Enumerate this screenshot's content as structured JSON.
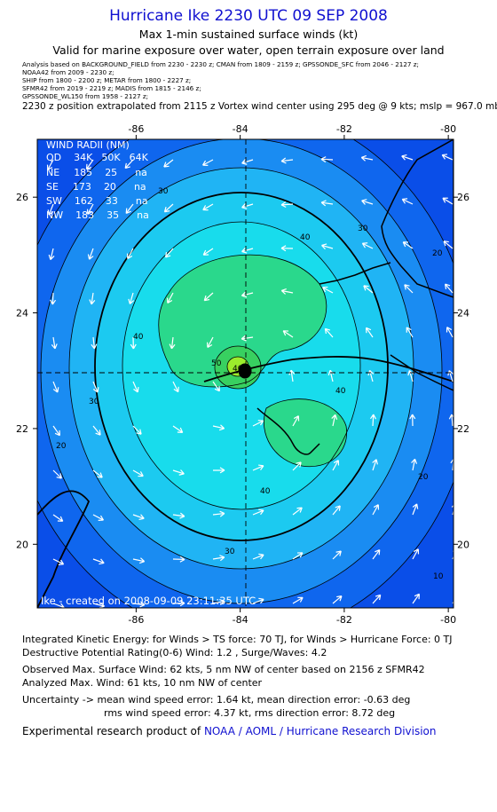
{
  "header": {
    "title": "Hurricane Ike 2230 UTC 09 SEP 2008",
    "subtitle": "Max 1-min sustained surface winds (kt)",
    "valid_text": "Valid for marine exposure over water, open terrain exposure over land",
    "sources": [
      "Analysis based on  BACKGROUND_FIELD from 2230 - 2230 z;  CMAN from 1809 - 2159 z;  GPSSONDE_SFC from 2046 - 2127 z;",
      "NOAA42 from 2009 - 2230 z;",
      "SHIP from 1800 - 2200 z;   METAR from 1800 - 2227 z;",
      "SFMR42 from 2019 - 2219 z;   MADIS from 1815 - 2146 z;",
      "GPSSONDE_WL150 from 1958 - 2127 z;"
    ],
    "position_text": "2230 z position extrapolated from 2115 z Vortex wind center using 295 deg @ 9 kts; mslp = 967.0 mb"
  },
  "map": {
    "lon_labels": [
      "-86",
      "-84",
      "-82",
      "-80"
    ],
    "lat_labels": [
      "26",
      "24",
      "22",
      "20"
    ],
    "lon_values": [
      -86,
      -84,
      -82,
      -80
    ],
    "lat_values": [
      26,
      24,
      22,
      20
    ],
    "extent": {
      "lon_min": -87.9,
      "lon_max": -79.9,
      "lat_min": 18.9,
      "lat_max": 27.0
    },
    "center": {
      "lon": -83.9,
      "lat": 23.0
    },
    "contour_labels": [
      "30",
      "40",
      "50",
      "30",
      "20",
      "30",
      "40",
      "40",
      "40",
      "40",
      "20",
      "20",
      "30",
      "10"
    ],
    "wind_radii": {
      "title": "WIND RADII (NM)",
      "header": [
        "QD",
        "34K",
        "50K",
        "64K"
      ],
      "rows": [
        [
          "NE",
          "185",
          "25",
          "na"
        ],
        [
          "SE",
          "173",
          "20",
          "na"
        ],
        [
          "SW",
          "162",
          "33",
          "na"
        ],
        [
          "NW",
          "183",
          "35",
          "na"
        ]
      ]
    },
    "footer_text": "Ike - created on 2008-09-09 23:11:35 UTC",
    "colors": {
      "deep": "#0a4ee8",
      "c10": "#0f66ee",
      "c20": "#1a8cf2",
      "c30": "#20b4f4",
      "c40": "#18dcec",
      "c45": "#24f0c8",
      "c50": "#2ad88c",
      "c55": "#38d060",
      "c60": "#9cec2c",
      "land": "#000000"
    }
  },
  "stats": {
    "ike": "Integrated Kinetic Energy:  for Winds > TS force: 70 TJ,  for Winds > Hurricane Force: 0 TJ",
    "dpr": "Destructive Potential Rating(0-6)   Wind: 1.2 , Surge/Waves: 4.2",
    "observed_max": "Observed Max. Surface Wind: 62 kts, 5 nm NW of center based on 2156 z SFMR42",
    "analyzed_max": "Analyzed Max. Wind: 61 kts, 10 nm NW of center",
    "uncertainty_1": "Uncertainty -> mean wind speed error: 1.64 kt,   mean direction error:  -0.63 deg",
    "uncertainty_2": "rms wind speed error: 4.37 kt,   rms direction error: 8.72 deg",
    "credit_prefix": "Experimental research product of",
    "credit_org": "NOAA / AOML / Hurricane Research Division"
  }
}
